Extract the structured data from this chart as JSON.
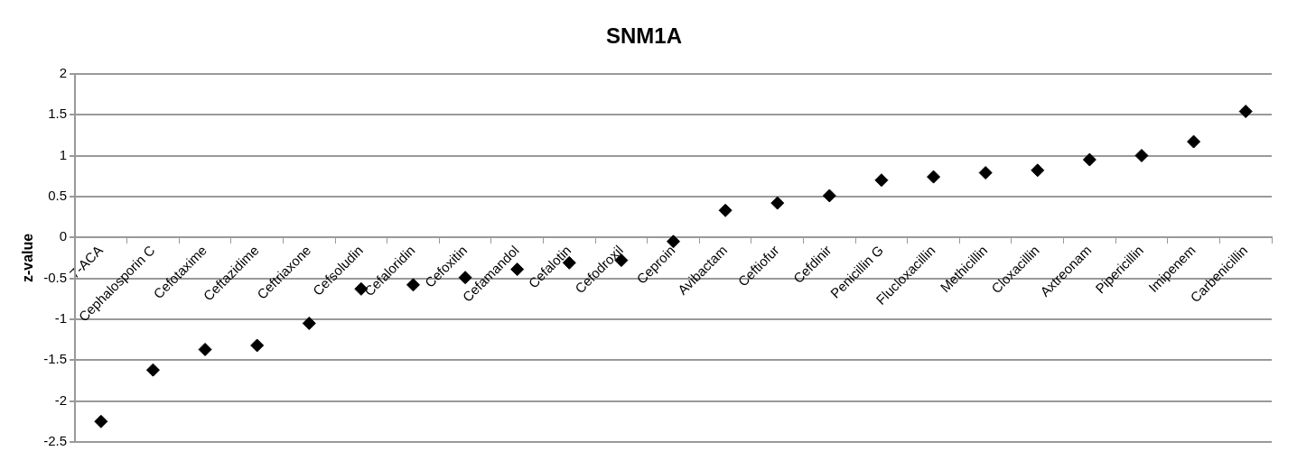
{
  "chart_data": {
    "type": "scatter",
    "title": "SNM1A",
    "ylabel": "z-value",
    "categories": [
      "7-ACA",
      "Cephalosporin C",
      "Cefotaxime",
      "Ceftazidime",
      "Ceftriaxone",
      "Cefsoludin",
      "Cefaloridin",
      "Cefoxitin",
      "Cefamandol",
      "Cefalotin",
      "Cefodroxil",
      "Ceproin",
      "Avibactam",
      "Ceftiofur",
      "Cefdinir",
      "Penicillin G",
      "Flucloxacillin",
      "Methicillin",
      "Cloxacillin",
      "Axtreonam",
      "Pipericillin",
      "Imipenem",
      "Carbenicillin"
    ],
    "values": [
      -2.25,
      -1.62,
      -1.37,
      -1.32,
      -1.05,
      -0.63,
      -0.58,
      -0.49,
      -0.39,
      -0.31,
      -0.28,
      -0.05,
      0.33,
      0.42,
      0.51,
      0.7,
      0.74,
      0.79,
      0.82,
      0.95,
      1.0,
      1.17,
      1.54
    ],
    "color": "#000000",
    "marker": "diamond",
    "ylim": [
      -2.5,
      2
    ],
    "yticks": [
      -2.5,
      -2,
      -1.5,
      -1,
      -0.5,
      0,
      0.5,
      1,
      1.5,
      2
    ],
    "grid": "y",
    "legend": false
  }
}
